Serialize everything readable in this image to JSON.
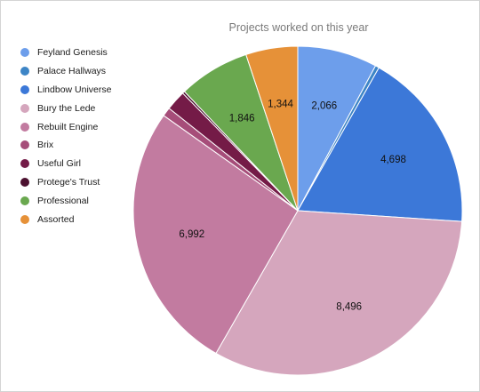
{
  "chart_data": {
    "type": "pie",
    "title": "Projects worked on this year",
    "legend_position": "left",
    "slices": [
      {
        "name": "Feyland Genesis",
        "value": 2066,
        "label": "2,066",
        "color": "#6d9eeb"
      },
      {
        "name": "Palace Hallways",
        "value": 100,
        "label": "",
        "color": "#3d85c6"
      },
      {
        "name": "Lindbow Universe",
        "value": 4698,
        "label": "4,698",
        "color": "#3c78d8"
      },
      {
        "name": "Bury the Lede",
        "value": 8496,
        "label": "8,496",
        "color": "#d5a6bd"
      },
      {
        "name": "Rebuilt Engine",
        "value": 6992,
        "label": "6,992",
        "color": "#c27ba0"
      },
      {
        "name": "Brix",
        "value": 230,
        "label": "",
        "color": "#a64d79"
      },
      {
        "name": "Useful Girl",
        "value": 520,
        "label": "",
        "color": "#741b47"
      },
      {
        "name": "Protege's Trust",
        "value": 60,
        "label": "",
        "color": "#4c1130"
      },
      {
        "name": "Professional",
        "value": 1846,
        "label": "1,846",
        "color": "#6aa84f"
      },
      {
        "name": "Assorted",
        "value": 1344,
        "label": "1,344",
        "color": "#e69138"
      }
    ]
  }
}
